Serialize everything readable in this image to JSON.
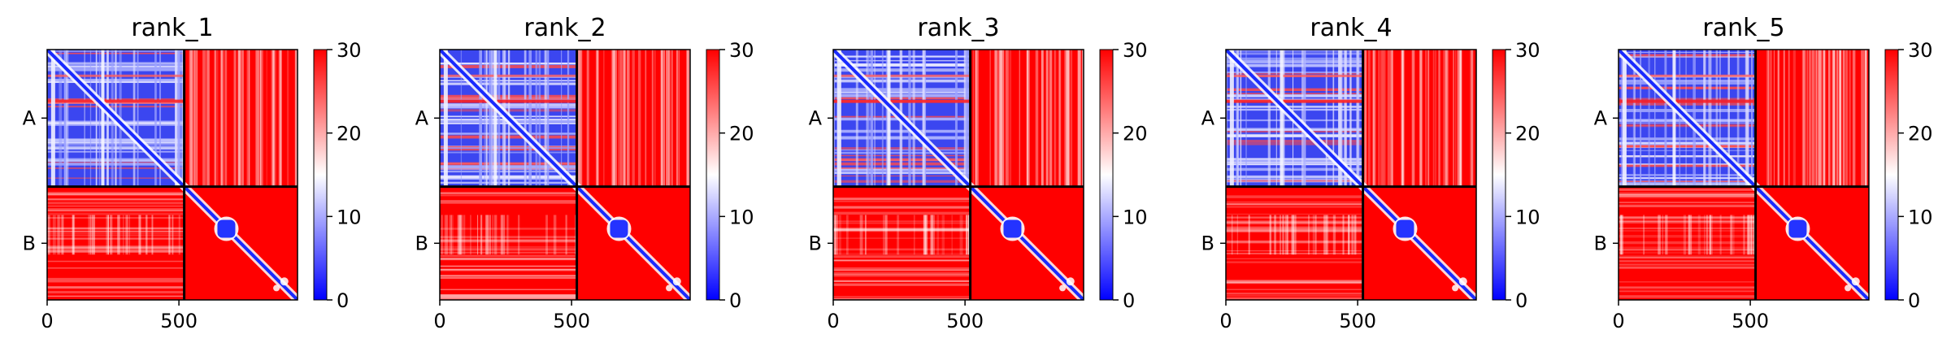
{
  "chart_data": {
    "type": "heatmap",
    "layout": "1x5 panels, each with its own colorbar on the right",
    "colormap": {
      "name": "bwr",
      "min_color": "#0000ff",
      "mid_color": "#ffffff",
      "max_color": "#ff0000"
    },
    "vmin": 0,
    "vmax": 30,
    "colorbar_ticks": [
      "0",
      "10",
      "20",
      "30"
    ],
    "x_ticks": [
      {
        "value": 0,
        "label": "0"
      },
      {
        "value": 500,
        "label": "500"
      }
    ],
    "xlim": [
      0,
      950
    ],
    "chain_boundary": 520,
    "chain_labels": [
      "A",
      "B"
    ],
    "axis_colors": {
      "frame": "#000000",
      "boundary": "#000000"
    },
    "panels": [
      {
        "title": "rank_1"
      },
      {
        "title": "rank_2"
      },
      {
        "title": "rank_3"
      },
      {
        "title": "rank_4"
      },
      {
        "title": "rank_5"
      }
    ]
  }
}
